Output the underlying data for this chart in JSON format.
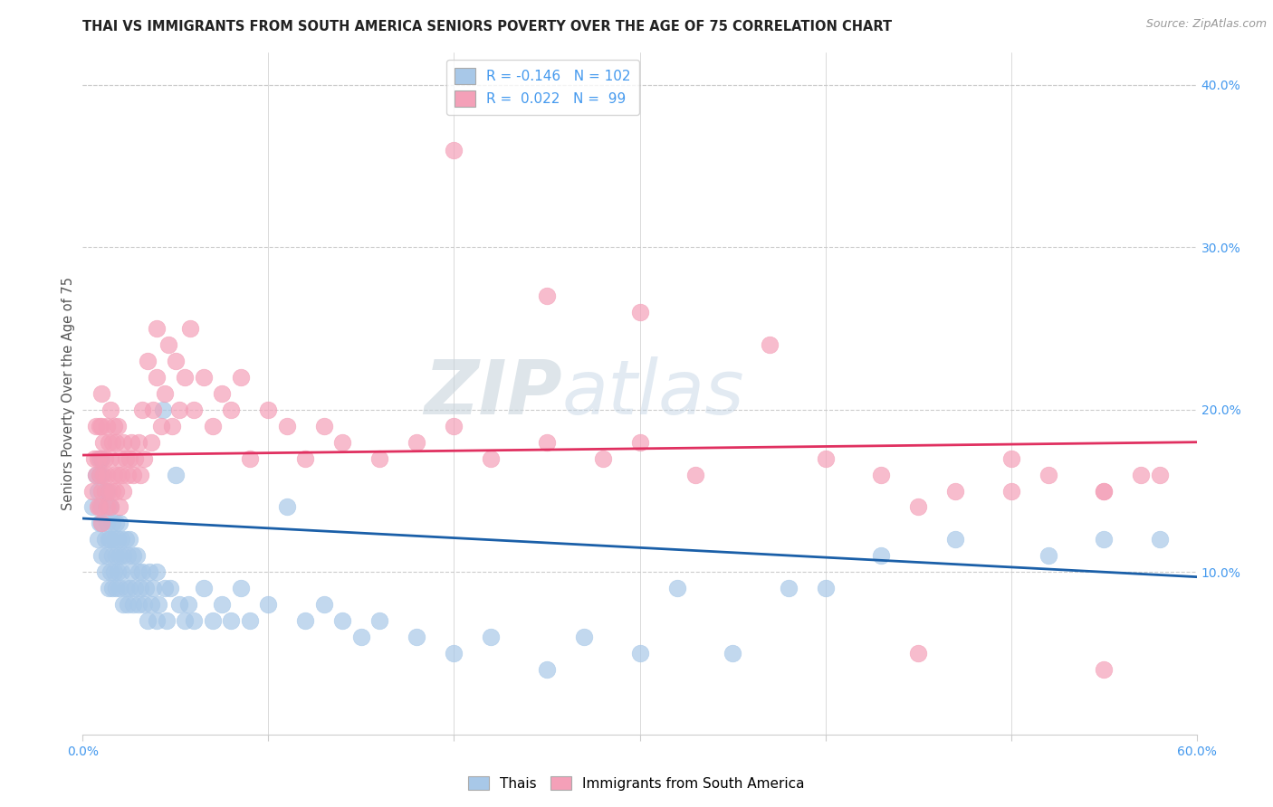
{
  "title": "THAI VS IMMIGRANTS FROM SOUTH AMERICA SENIORS POVERTY OVER THE AGE OF 75 CORRELATION CHART",
  "source": "Source: ZipAtlas.com",
  "ylabel": "Seniors Poverty Over the Age of 75",
  "xlim": [
    0.0,
    0.6
  ],
  "ylim": [
    0.0,
    0.42
  ],
  "xticks": [
    0.0,
    0.1,
    0.2,
    0.3,
    0.4,
    0.5,
    0.6
  ],
  "xticklabels": [
    "0.0%",
    "",
    "",
    "",
    "",
    "",
    "60.0%"
  ],
  "yticks_right": [
    0.1,
    0.2,
    0.3,
    0.4
  ],
  "ytick_right_labels": [
    "10.0%",
    "20.0%",
    "30.0%",
    "40.0%"
  ],
  "blue_color": "#a8c8e8",
  "pink_color": "#f4a0b8",
  "blue_line_color": "#1a5fa8",
  "pink_line_color": "#e03060",
  "R_blue": -0.146,
  "N_blue": 102,
  "R_pink": 0.022,
  "N_pink": 99,
  "watermark_zip": "ZIP",
  "watermark_atlas": "atlas",
  "legend_label_blue": "Thais",
  "legend_label_pink": "Immigrants from South America",
  "blue_line_x0": 0.0,
  "blue_line_y0": 0.133,
  "blue_line_x1": 0.6,
  "blue_line_y1": 0.097,
  "pink_line_x0": 0.0,
  "pink_line_y0": 0.172,
  "pink_line_x1": 0.6,
  "pink_line_y1": 0.18,
  "blue_x": [
    0.005,
    0.007,
    0.008,
    0.008,
    0.009,
    0.009,
    0.009,
    0.01,
    0.01,
    0.01,
    0.01,
    0.01,
    0.012,
    0.012,
    0.012,
    0.013,
    0.013,
    0.013,
    0.014,
    0.014,
    0.014,
    0.015,
    0.015,
    0.015,
    0.016,
    0.016,
    0.016,
    0.017,
    0.017,
    0.018,
    0.018,
    0.018,
    0.019,
    0.019,
    0.02,
    0.02,
    0.02,
    0.021,
    0.021,
    0.022,
    0.022,
    0.023,
    0.023,
    0.024,
    0.024,
    0.025,
    0.025,
    0.026,
    0.027,
    0.027,
    0.028,
    0.029,
    0.03,
    0.03,
    0.031,
    0.032,
    0.033,
    0.034,
    0.035,
    0.036,
    0.037,
    0.038,
    0.04,
    0.04,
    0.041,
    0.043,
    0.044,
    0.045,
    0.047,
    0.05,
    0.052,
    0.055,
    0.057,
    0.06,
    0.065,
    0.07,
    0.075,
    0.08,
    0.085,
    0.09,
    0.1,
    0.11,
    0.12,
    0.13,
    0.14,
    0.15,
    0.16,
    0.18,
    0.2,
    0.22,
    0.25,
    0.27,
    0.3,
    0.32,
    0.35,
    0.38,
    0.4,
    0.43,
    0.47,
    0.52,
    0.55,
    0.58
  ],
  "blue_y": [
    0.14,
    0.16,
    0.12,
    0.15,
    0.13,
    0.16,
    0.17,
    0.11,
    0.13,
    0.14,
    0.16,
    0.17,
    0.1,
    0.12,
    0.15,
    0.11,
    0.13,
    0.15,
    0.09,
    0.12,
    0.14,
    0.1,
    0.12,
    0.14,
    0.09,
    0.11,
    0.13,
    0.1,
    0.12,
    0.09,
    0.11,
    0.13,
    0.1,
    0.12,
    0.09,
    0.11,
    0.13,
    0.1,
    0.12,
    0.08,
    0.11,
    0.09,
    0.12,
    0.08,
    0.11,
    0.09,
    0.12,
    0.1,
    0.08,
    0.11,
    0.09,
    0.11,
    0.08,
    0.1,
    0.09,
    0.1,
    0.08,
    0.09,
    0.07,
    0.1,
    0.08,
    0.09,
    0.07,
    0.1,
    0.08,
    0.2,
    0.09,
    0.07,
    0.09,
    0.16,
    0.08,
    0.07,
    0.08,
    0.07,
    0.09,
    0.07,
    0.08,
    0.07,
    0.09,
    0.07,
    0.08,
    0.14,
    0.07,
    0.08,
    0.07,
    0.06,
    0.07,
    0.06,
    0.05,
    0.06,
    0.04,
    0.06,
    0.05,
    0.09,
    0.05,
    0.09,
    0.09,
    0.11,
    0.12,
    0.11,
    0.12,
    0.12
  ],
  "pink_x": [
    0.005,
    0.006,
    0.007,
    0.007,
    0.008,
    0.008,
    0.009,
    0.009,
    0.009,
    0.01,
    0.01,
    0.01,
    0.01,
    0.01,
    0.011,
    0.011,
    0.012,
    0.012,
    0.013,
    0.013,
    0.013,
    0.014,
    0.014,
    0.015,
    0.015,
    0.015,
    0.016,
    0.016,
    0.017,
    0.017,
    0.018,
    0.018,
    0.019,
    0.019,
    0.02,
    0.02,
    0.021,
    0.022,
    0.022,
    0.023,
    0.024,
    0.025,
    0.026,
    0.027,
    0.028,
    0.03,
    0.031,
    0.032,
    0.033,
    0.035,
    0.037,
    0.038,
    0.04,
    0.04,
    0.042,
    0.044,
    0.046,
    0.048,
    0.05,
    0.052,
    0.055,
    0.058,
    0.06,
    0.065,
    0.07,
    0.075,
    0.08,
    0.085,
    0.09,
    0.1,
    0.11,
    0.12,
    0.13,
    0.14,
    0.16,
    0.18,
    0.2,
    0.22,
    0.25,
    0.28,
    0.3,
    0.33,
    0.37,
    0.4,
    0.43,
    0.47,
    0.5,
    0.52,
    0.55,
    0.57,
    0.2,
    0.25,
    0.3,
    0.45,
    0.5,
    0.55,
    0.58,
    0.55,
    0.45
  ],
  "pink_y": [
    0.15,
    0.17,
    0.16,
    0.19,
    0.14,
    0.17,
    0.14,
    0.16,
    0.19,
    0.13,
    0.15,
    0.17,
    0.19,
    0.21,
    0.16,
    0.18,
    0.15,
    0.17,
    0.14,
    0.16,
    0.19,
    0.15,
    0.18,
    0.14,
    0.17,
    0.2,
    0.15,
    0.18,
    0.16,
    0.19,
    0.15,
    0.18,
    0.16,
    0.19,
    0.14,
    0.17,
    0.16,
    0.15,
    0.18,
    0.17,
    0.16,
    0.17,
    0.18,
    0.16,
    0.17,
    0.18,
    0.16,
    0.2,
    0.17,
    0.23,
    0.18,
    0.2,
    0.22,
    0.25,
    0.19,
    0.21,
    0.24,
    0.19,
    0.23,
    0.2,
    0.22,
    0.25,
    0.2,
    0.22,
    0.19,
    0.21,
    0.2,
    0.22,
    0.17,
    0.2,
    0.19,
    0.17,
    0.19,
    0.18,
    0.17,
    0.18,
    0.19,
    0.17,
    0.18,
    0.17,
    0.18,
    0.16,
    0.24,
    0.17,
    0.16,
    0.15,
    0.17,
    0.16,
    0.15,
    0.16,
    0.36,
    0.27,
    0.26,
    0.14,
    0.15,
    0.15,
    0.16,
    0.04,
    0.05
  ]
}
